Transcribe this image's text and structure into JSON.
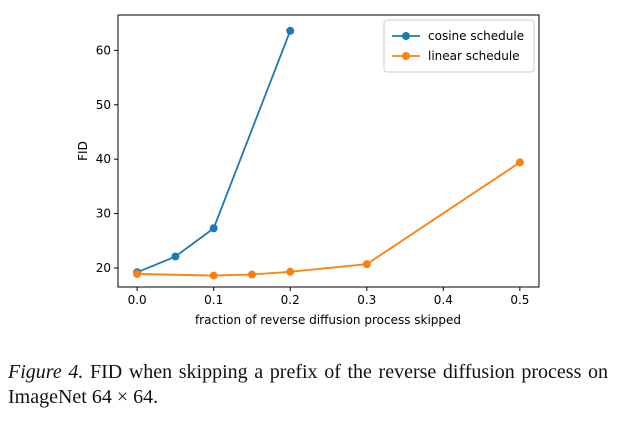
{
  "chart_data": {
    "type": "line",
    "xlabel": "fraction of reverse diffusion process skipped",
    "ylabel": "FID",
    "xlim": [
      -0.025,
      0.525
    ],
    "ylim": [
      16.5,
      66.5
    ],
    "xticks": [
      0.0,
      0.1,
      0.2,
      0.3,
      0.4,
      0.5
    ],
    "xtick_labels": [
      "0.0",
      "0.1",
      "0.2",
      "0.3",
      "0.4",
      "0.5"
    ],
    "yticks": [
      20,
      30,
      40,
      50,
      60
    ],
    "ytick_labels": [
      "20",
      "30",
      "40",
      "50",
      "60"
    ],
    "grid": false,
    "legend_position": "top-right",
    "series": [
      {
        "name": "cosine schedule",
        "color": "#1f77b4",
        "x": [
          0.0,
          0.05,
          0.1,
          0.2
        ],
        "y": [
          19.2,
          22.1,
          27.3,
          63.6
        ]
      },
      {
        "name": "linear schedule",
        "color": "#ff7f0e",
        "x": [
          0.0,
          0.1,
          0.15,
          0.2,
          0.3,
          0.5
        ],
        "y": [
          18.9,
          18.6,
          18.8,
          19.3,
          20.7,
          39.4
        ]
      }
    ]
  },
  "caption": {
    "label": "Figure 4.",
    "text": "FID when skipping a prefix of the reverse diffusion process on ImageNet 64 × 64."
  }
}
